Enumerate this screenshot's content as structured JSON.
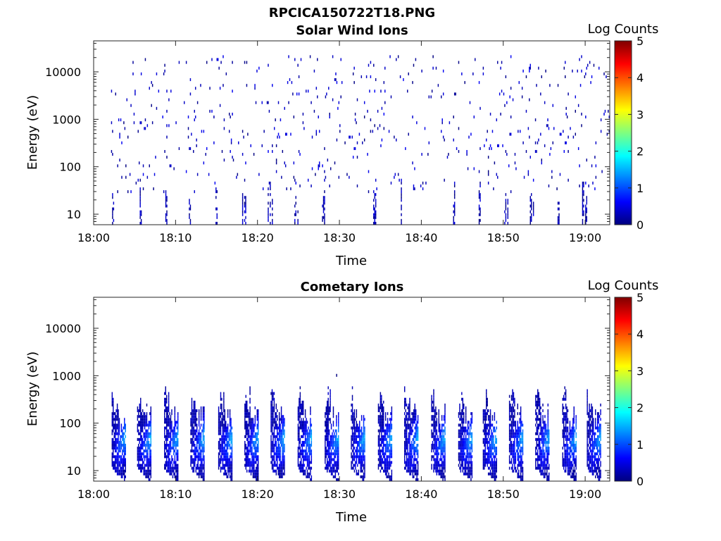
{
  "figure": {
    "file_title": "RPCICA150722T18.PNG"
  },
  "colormap": {
    "name": "jet",
    "stops": [
      "#00007f",
      "#0000ff",
      "#007fff",
      "#00ffff",
      "#7fff7f",
      "#ffff00",
      "#ff7f00",
      "#ff0000",
      "#7f0000"
    ]
  },
  "chart_data": [
    {
      "type": "heatmap",
      "title": "Solar Wind Ions",
      "xlabel": "Time",
      "ylabel": "Energy (eV)",
      "colorbar_label": "Log Counts",
      "x_ticks": [
        "18:00",
        "18:10",
        "18:20",
        "18:30",
        "18:40",
        "18:50",
        "19:00"
      ],
      "x_range_min": [
        0,
        63
      ],
      "y_ticks": [
        "10",
        "100",
        "1000",
        "10000"
      ],
      "y_tick_values": [
        10,
        100,
        1000,
        10000
      ],
      "y_scale": "log",
      "y_range": [
        6,
        45000
      ],
      "colorbar_ticks": [
        "0",
        "1",
        "2",
        "3",
        "4",
        "5"
      ],
      "colorbar_range": [
        0,
        5
      ],
      "grid": false,
      "data_start_min": 2,
      "data_end_min": 63,
      "typical_log_counts": [
        0,
        0.7
      ],
      "pattern": "sparse single counts scattered across 10-10000 eV; near-continuous low-energy streaks at 8-40 eV in periodic bursts every ~3 min"
    },
    {
      "type": "heatmap",
      "title": "Cometary Ions",
      "xlabel": "Time",
      "ylabel": "Energy (eV)",
      "colorbar_label": "Log Counts",
      "x_ticks": [
        "18:00",
        "18:10",
        "18:20",
        "18:30",
        "18:40",
        "18:50",
        "19:00"
      ],
      "x_range_min": [
        0,
        63
      ],
      "y_ticks": [
        "10",
        "100",
        "1000",
        "10000"
      ],
      "y_tick_values": [
        10,
        100,
        1000,
        10000
      ],
      "y_scale": "log",
      "y_range": [
        6,
        45000
      ],
      "colorbar_ticks": [
        "0",
        "1",
        "2",
        "3",
        "4",
        "5"
      ],
      "colorbar_range": [
        0,
        5
      ],
      "grid": false,
      "data_start_min": 2,
      "data_end_min": 63,
      "burst_period_min": 3.3,
      "bursts_at_min": [
        3.6,
        6.7,
        10.0,
        13.2,
        16.6,
        19.8,
        23.0,
        26.3,
        29.6,
        32.8,
        36.1,
        39.3,
        42.6,
        45.9,
        48.9,
        52.1,
        55.3,
        58.6,
        61.6
      ],
      "burst_energy_range_eV": [
        7,
        150
      ],
      "burst_peak_log_counts": 1.6,
      "bright_burst_at_min": 48.2,
      "bright_burst_peak_log_counts": 2.2,
      "isolated_count": {
        "time_min": 29.6,
        "energy_eV": 950,
        "log_counts": 0
      }
    }
  ]
}
